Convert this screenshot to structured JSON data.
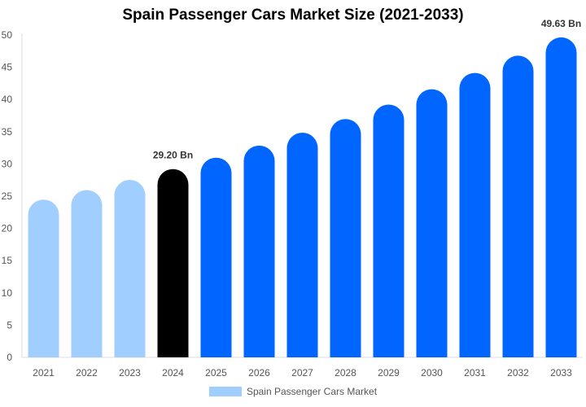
{
  "chart_data": {
    "type": "bar",
    "title": "Spain Passenger Cars Market Size (2021-2033)",
    "categories": [
      "2021",
      "2022",
      "2023",
      "2024",
      "2025",
      "2026",
      "2027",
      "2028",
      "2029",
      "2030",
      "2031",
      "2032",
      "2033"
    ],
    "series": [
      {
        "name": "Spain Passenger Cars Market",
        "values": [
          24.47,
          25.95,
          27.53,
          29.2,
          30.97,
          32.85,
          34.85,
          36.97,
          39.21,
          41.59,
          44.12,
          46.79,
          49.63
        ]
      }
    ],
    "bar_colors": [
      "#a0cfff",
      "#a0cfff",
      "#a0cfff",
      "#000000",
      "#0066ff",
      "#0066ff",
      "#0066ff",
      "#0066ff",
      "#0066ff",
      "#0066ff",
      "#0066ff",
      "#0066ff",
      "#0066ff"
    ],
    "data_labels": {
      "3": "29.20 Bn",
      "12": "49.63 Bn"
    },
    "yticks": [
      0,
      5,
      10,
      15,
      20,
      25,
      30,
      35,
      40,
      45,
      50
    ],
    "ylim": [
      0,
      50
    ],
    "xlabel": "",
    "ylabel": "",
    "grid": false,
    "legend_position": "bottom"
  }
}
